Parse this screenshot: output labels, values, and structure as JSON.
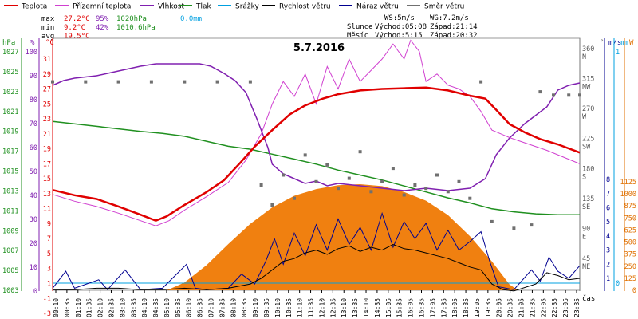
{
  "chart_data": {
    "type": "line",
    "title": "5.7.2016",
    "legend": [
      {
        "name": "Teplota",
        "color": "#e00000"
      },
      {
        "name": "Přízemní teplota",
        "color": "#d040d0"
      },
      {
        "name": "Vlhkost",
        "color": "#8020b0"
      },
      {
        "name": "Tlak",
        "color": "#209020"
      },
      {
        "name": "Srážky",
        "color": "#00a0e0"
      },
      {
        "name": "Rychlost větru",
        "color": "#000000"
      },
      {
        "name": "Náraz větru",
        "color": "#000090"
      },
      {
        "name": "Směr větru",
        "color": "#707070"
      }
    ],
    "stats": {
      "max_line": [
        "max",
        "27.2°C",
        "95%",
        "1020hPa",
        "0.0mm"
      ],
      "min_line": [
        "min",
        "9.2°C",
        "42%",
        "1010.6hPa"
      ],
      "avg_line": [
        "avg",
        "19.5°C"
      ]
    },
    "info": {
      "ws": "WS:5m/s",
      "wg": "WG:7.2m/s",
      "sun_label": "Slunce",
      "sun_rise": "Východ:05:08",
      "sun_set": "Západ:21:14",
      "moon_label": "Měsíc",
      "moon_rise": "Východ:5:15",
      "moon_set": "Západ:20:32"
    },
    "axes": {
      "hpa_unit": "hPa",
      "pct_unit": "%",
      "temp_unit": "°C",
      "deg_unit": "°",
      "ms_unit": "m/s",
      "mm_unit": "mm",
      "w_unit": "W",
      "x_label": "čas",
      "hpa_ticks": [
        "1027",
        "1025",
        "1023",
        "1021",
        "1019",
        "1017",
        "1015",
        "1013",
        "1011",
        "1009",
        "1007",
        "1005",
        "1003"
      ],
      "pct_ticks": [
        "100",
        "90",
        "80",
        "70",
        "60",
        "50",
        "40",
        "30",
        "20",
        "10",
        "0"
      ],
      "temp_ticks": [
        "31",
        "29",
        "27",
        "25",
        "23",
        "21",
        "19",
        "17",
        "15",
        "13",
        "11",
        "9",
        "7",
        "5",
        "3",
        "1",
        "-1",
        "-3"
      ],
      "dir_ticks": [
        "360",
        "315",
        "270",
        "225",
        "180",
        "135",
        "90",
        "45"
      ],
      "dir_labels": [
        "N",
        "NW",
        "W",
        "SW",
        "S",
        "SE",
        "E",
        "NE"
      ],
      "ms_ticks": [
        "8",
        "7",
        "6",
        "5",
        "4",
        "3",
        "2",
        "1"
      ],
      "mm_ticks": [
        "1",
        "0"
      ],
      "w_ticks": [
        "1125",
        "1000",
        "875",
        "750",
        "625",
        "500",
        "375",
        "250",
        "125",
        "0"
      ],
      "x_ticks": [
        "00:10",
        "00:35",
        "01:10",
        "01:35",
        "02:10",
        "02:35",
        "03:10",
        "03:35",
        "04:10",
        "04:35",
        "05:10",
        "05:35",
        "06:10",
        "06:35",
        "07:10",
        "07:35",
        "08:10",
        "08:35",
        "09:10",
        "09:35",
        "10:10",
        "10:35",
        "11:10",
        "11:35",
        "12:10",
        "12:35",
        "13:10",
        "13:35",
        "14:10",
        "14:35",
        "15:05",
        "15:35",
        "16:05",
        "16:35",
        "17:05",
        "17:35",
        "18:05",
        "18:35",
        "19:05",
        "19:35",
        "20:05",
        "20:35",
        "21:05",
        "21:35",
        "22:05",
        "22:35",
        "23:05",
        "23:35"
      ]
    },
    "xlim_hours": [
      0,
      24
    ],
    "series_data": {
      "temperature": [
        [
          0,
          13.5
        ],
        [
          1,
          12.8
        ],
        [
          2,
          12.3
        ],
        [
          3,
          11.3
        ],
        [
          4,
          10.2
        ],
        [
          4.7,
          9.4
        ],
        [
          5.2,
          10.0
        ],
        [
          6,
          11.5
        ],
        [
          7,
          13.2
        ],
        [
          7.8,
          14.8
        ],
        [
          8.5,
          17.0
        ],
        [
          9.2,
          19.3
        ],
        [
          10,
          21.5
        ],
        [
          10.8,
          23.6
        ],
        [
          11.5,
          24.8
        ],
        [
          12.3,
          25.7
        ],
        [
          13,
          26.3
        ],
        [
          14,
          26.8
        ],
        [
          15,
          27.0
        ],
        [
          16,
          27.1
        ],
        [
          17,
          27.2
        ],
        [
          18,
          26.8
        ],
        [
          19,
          26.1
        ],
        [
          19.7,
          25.7
        ],
        [
          20.2,
          24.2
        ],
        [
          20.8,
          22.3
        ],
        [
          21.5,
          21.2
        ],
        [
          22.2,
          20.3
        ],
        [
          23,
          19.6
        ],
        [
          24,
          18.5
        ]
      ],
      "ground_temperature": [
        [
          0,
          12.9
        ],
        [
          1,
          12.0
        ],
        [
          2,
          11.3
        ],
        [
          3,
          10.4
        ],
        [
          4,
          9.4
        ],
        [
          4.7,
          8.7
        ],
        [
          5.3,
          9.4
        ],
        [
          6,
          10.8
        ],
        [
          7,
          12.6
        ],
        [
          8,
          14.5
        ],
        [
          8.8,
          17.5
        ],
        [
          9.5,
          21
        ],
        [
          10,
          25
        ],
        [
          10.5,
          28
        ],
        [
          11,
          26
        ],
        [
          11.5,
          29
        ],
        [
          12,
          25
        ],
        [
          12.5,
          30
        ],
        [
          13,
          27
        ],
        [
          13.5,
          31
        ],
        [
          14,
          28
        ],
        [
          14.5,
          29.5
        ],
        [
          15,
          31
        ],
        [
          15.5,
          33
        ],
        [
          16,
          31
        ],
        [
          16.3,
          33.5
        ],
        [
          16.7,
          32
        ],
        [
          17,
          28
        ],
        [
          17.5,
          29
        ],
        [
          18,
          27.5
        ],
        [
          18.5,
          27
        ],
        [
          19,
          26
        ],
        [
          19.5,
          24
        ],
        [
          20,
          21.5
        ],
        [
          20.8,
          20.5
        ],
        [
          21.5,
          19.8
        ],
        [
          22.5,
          18.8
        ],
        [
          24,
          17
        ]
      ],
      "humidity_pct": [
        [
          0,
          86
        ],
        [
          0.5,
          88
        ],
        [
          1,
          89
        ],
        [
          2,
          90
        ],
        [
          3,
          92
        ],
        [
          4,
          94
        ],
        [
          4.7,
          95
        ],
        [
          5.5,
          95
        ],
        [
          6.3,
          95
        ],
        [
          6.7,
          95
        ],
        [
          7.2,
          94
        ],
        [
          7.8,
          91
        ],
        [
          8.3,
          88
        ],
        [
          8.8,
          83
        ],
        [
          9.3,
          72
        ],
        [
          9.8,
          60
        ],
        [
          10,
          53
        ],
        [
          10.5,
          49
        ],
        [
          11,
          47
        ],
        [
          11.5,
          45
        ],
        [
          12,
          46
        ],
        [
          12.5,
          44
        ],
        [
          13,
          45
        ],
        [
          14,
          44
        ],
        [
          15,
          43
        ],
        [
          16,
          42
        ],
        [
          17,
          43
        ],
        [
          18,
          42
        ],
        [
          19,
          43
        ],
        [
          19.7,
          47
        ],
        [
          20.2,
          57
        ],
        [
          20.8,
          64
        ],
        [
          21.5,
          70
        ],
        [
          22.5,
          77
        ],
        [
          23,
          84
        ],
        [
          23.5,
          86
        ],
        [
          24,
          87
        ]
      ],
      "pressure_hpa": [
        [
          0,
          1020
        ],
        [
          2,
          1019.5
        ],
        [
          4,
          1019
        ],
        [
          5,
          1018.8
        ],
        [
          6,
          1018.5
        ],
        [
          7,
          1018
        ],
        [
          8,
          1017.5
        ],
        [
          9,
          1017.2
        ],
        [
          10,
          1016.7
        ],
        [
          11,
          1016.2
        ],
        [
          12,
          1015.7
        ],
        [
          13,
          1015.1
        ],
        [
          14,
          1014.6
        ],
        [
          15,
          1014.1
        ],
        [
          16,
          1013.5
        ],
        [
          17,
          1012.9
        ],
        [
          18,
          1012.3
        ],
        [
          19,
          1011.8
        ],
        [
          20,
          1011.2
        ],
        [
          21,
          1010.9
        ],
        [
          22,
          1010.7
        ],
        [
          23,
          1010.6
        ],
        [
          24,
          1010.6
        ]
      ],
      "rain_mm": [
        [
          0,
          0
        ],
        [
          24,
          0
        ]
      ],
      "wind_speed_ms": [
        [
          0,
          0.2
        ],
        [
          1,
          0.2
        ],
        [
          2,
          0.3
        ],
        [
          3,
          0.3
        ],
        [
          4,
          0.2
        ],
        [
          5,
          0.2
        ],
        [
          6,
          0.3
        ],
        [
          7,
          0.2
        ],
        [
          8,
          0.3
        ],
        [
          9,
          0.6
        ],
        [
          9.5,
          1.0
        ],
        [
          10,
          1.6
        ],
        [
          10.5,
          2.2
        ],
        [
          11,
          2.4
        ],
        [
          11.5,
          2.8
        ],
        [
          12,
          3.0
        ],
        [
          12.5,
          2.7
        ],
        [
          13,
          3.1
        ],
        [
          13.5,
          3.3
        ],
        [
          14,
          2.9
        ],
        [
          14.5,
          3.2
        ],
        [
          15,
          3.0
        ],
        [
          15.5,
          3.4
        ],
        [
          16,
          3.1
        ],
        [
          16.5,
          3.0
        ],
        [
          17,
          2.8
        ],
        [
          17.5,
          2.6
        ],
        [
          18,
          2.4
        ],
        [
          18.5,
          2.1
        ],
        [
          19,
          1.8
        ],
        [
          19.5,
          1.6
        ],
        [
          20,
          0.6
        ],
        [
          20.5,
          0.2
        ],
        [
          21,
          0.1
        ],
        [
          22,
          0.6
        ],
        [
          22.5,
          1.4
        ],
        [
          23,
          1.2
        ],
        [
          23.5,
          0.9
        ],
        [
          24,
          1.0
        ]
      ],
      "wind_gust_ms": [
        [
          0,
          0.3
        ],
        [
          0.6,
          1.5
        ],
        [
          1,
          0.3
        ],
        [
          2.1,
          0.9
        ],
        [
          2.5,
          0.2
        ],
        [
          3.3,
          1.6
        ],
        [
          4,
          0.2
        ],
        [
          5,
          0.3
        ],
        [
          6.1,
          2.0
        ],
        [
          6.5,
          0.3
        ],
        [
          7,
          0.2
        ],
        [
          8,
          0.3
        ],
        [
          8.6,
          1.3
        ],
        [
          9.2,
          0.6
        ],
        [
          9.7,
          2.2
        ],
        [
          10.1,
          3.8
        ],
        [
          10.5,
          2.0
        ],
        [
          11,
          4.2
        ],
        [
          11.5,
          2.6
        ],
        [
          12,
          4.8
        ],
        [
          12.5,
          3.0
        ],
        [
          13,
          5.2
        ],
        [
          13.5,
          3.4
        ],
        [
          14,
          4.6
        ],
        [
          14.5,
          3.0
        ],
        [
          15,
          5.6
        ],
        [
          15.5,
          3.2
        ],
        [
          16,
          5.0
        ],
        [
          16.5,
          3.8
        ],
        [
          17,
          4.9
        ],
        [
          17.5,
          3.0
        ],
        [
          18,
          4.4
        ],
        [
          18.5,
          3.0
        ],
        [
          19,
          3.6
        ],
        [
          19.5,
          4.3
        ],
        [
          19.9,
          2.2
        ],
        [
          20.3,
          0.4
        ],
        [
          21,
          0.2
        ],
        [
          21.8,
          1.6
        ],
        [
          22.2,
          0.8
        ],
        [
          22.6,
          2.5
        ],
        [
          23,
          1.5
        ],
        [
          23.5,
          1.0
        ],
        [
          24,
          1.9
        ]
      ],
      "wind_dir_deg": [
        [
          0,
          315
        ],
        [
          1.5,
          315
        ],
        [
          3,
          315
        ],
        [
          4.5,
          315
        ],
        [
          6,
          315
        ],
        [
          7.5,
          315
        ],
        [
          9,
          315
        ],
        [
          9.5,
          160
        ],
        [
          10,
          130
        ],
        [
          10.5,
          175
        ],
        [
          11,
          140
        ],
        [
          11.5,
          205
        ],
        [
          12,
          165
        ],
        [
          12.5,
          190
        ],
        [
          13,
          155
        ],
        [
          13.5,
          170
        ],
        [
          14,
          210
        ],
        [
          14.5,
          150
        ],
        [
          15,
          165
        ],
        [
          15.5,
          185
        ],
        [
          16,
          145
        ],
        [
          16.5,
          160
        ],
        [
          17,
          155
        ],
        [
          17.5,
          175
        ],
        [
          18,
          150
        ],
        [
          18.5,
          165
        ],
        [
          19,
          140
        ],
        [
          19.5,
          315
        ],
        [
          20,
          105
        ],
        [
          21,
          95
        ],
        [
          21.8,
          100
        ],
        [
          22.2,
          300
        ],
        [
          22.8,
          295
        ],
        [
          23.5,
          295
        ],
        [
          24,
          295
        ]
      ],
      "solar_w": [
        [
          5.2,
          0
        ],
        [
          6,
          80
        ],
        [
          7,
          260
        ],
        [
          8,
          480
        ],
        [
          9,
          690
        ],
        [
          10,
          860
        ],
        [
          11,
          980
        ],
        [
          12,
          1050
        ],
        [
          13,
          1090
        ],
        [
          14,
          1100
        ],
        [
          15,
          1080
        ],
        [
          16,
          1020
        ],
        [
          17,
          930
        ],
        [
          18,
          780
        ],
        [
          19,
          560
        ],
        [
          20,
          300
        ],
        [
          20.8,
          60
        ],
        [
          21.2,
          0
        ]
      ]
    }
  }
}
